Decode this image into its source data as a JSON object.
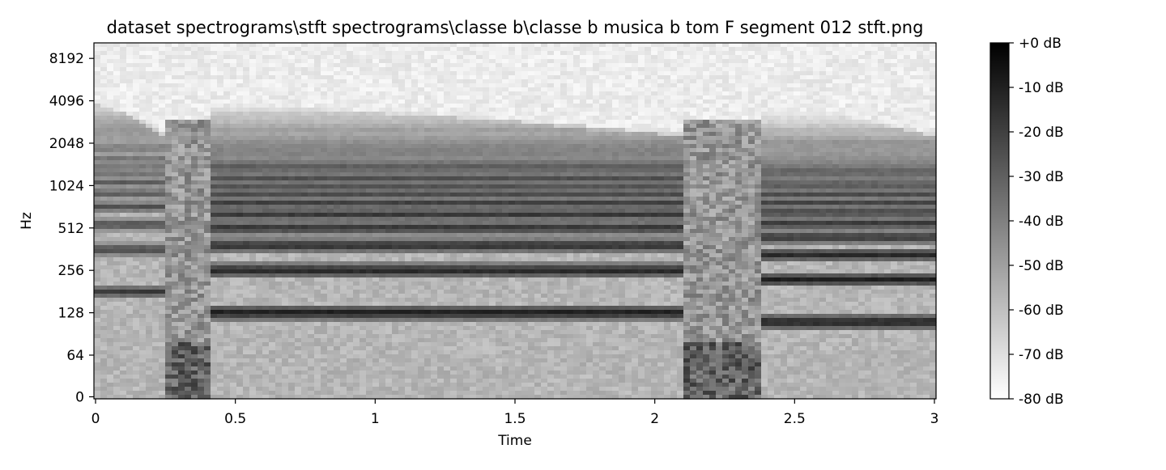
{
  "chart_data": {
    "type": "heatmap",
    "title": "dataset spectrograms\\stft spectrograms\\classe b\\classe b musica b tom F segment 012 stft.png",
    "xlabel": "Time",
    "ylabel": "Hz",
    "x_axis": {
      "scale": "linear",
      "range": [
        0,
        3
      ],
      "ticks": [
        0,
        0.5,
        1,
        1.5,
        2,
        2.5,
        3
      ],
      "tick_labels": [
        "0",
        "0.5",
        "1",
        "1.5",
        "2",
        "2.5",
        "3"
      ]
    },
    "y_axis": {
      "scale": "symlog (base 2)",
      "range": [
        0,
        11025
      ],
      "ticks": [
        0,
        64,
        128,
        256,
        512,
        1024,
        2048,
        4096,
        8192
      ],
      "tick_labels": [
        "0",
        "64",
        "128",
        "256",
        "512",
        "1024",
        "2048",
        "4096",
        "8192"
      ]
    },
    "colorbar": {
      "range": [
        -80,
        0
      ],
      "ticks": [
        0,
        -10,
        -20,
        -30,
        -40,
        -50,
        -60,
        -70,
        -80
      ],
      "tick_labels": [
        "+0 dB",
        "-10 dB",
        "-20 dB",
        "-30 dB",
        "-40 dB",
        "-50 dB",
        "-60 dB",
        "-70 dB",
        "-80 dB"
      ],
      "colormap": "gray_r"
    },
    "segments": [
      {
        "start": 0.0,
        "end": 0.25,
        "f0": 180,
        "level_db": -15
      },
      {
        "start": 0.42,
        "end": 2.1,
        "f0": 128,
        "level_db": -5
      },
      {
        "start": 2.38,
        "end": 3.0,
        "f0": 110,
        "level_db": -5
      }
    ],
    "grid": false,
    "colors": {
      "low": "#ffffff",
      "high": "#000000"
    }
  }
}
